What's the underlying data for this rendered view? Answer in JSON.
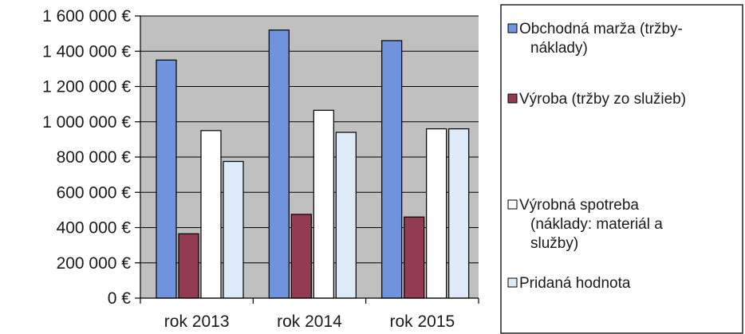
{
  "chart_data": {
    "type": "bar",
    "categories": [
      "rok 2013",
      "rok 2014",
      "rok 2015"
    ],
    "series": [
      {
        "name": "Obchodná marža (tržby-náklady)",
        "values": [
          1350000,
          1520000,
          1460000
        ],
        "color": "#6f93dd"
      },
      {
        "name": "Výroba (tržby zo služieb)",
        "values": [
          365000,
          475000,
          460000
        ],
        "color": "#933b52"
      },
      {
        "name": "Výrobná spotreba (náklady: materiál a služby)",
        "values": [
          950000,
          1065000,
          960000
        ],
        "color": "#ffffff"
      },
      {
        "name": "Pridaná hodnota",
        "values": [
          775000,
          940000,
          960000
        ],
        "color": "#ddeaf8"
      }
    ],
    "legend_lines": [
      [
        "Obchodná marža (tržby-",
        "náklady)"
      ],
      [
        "Výroba (tržby zo služieb)"
      ],
      [
        "Výrobná spotreba",
        "(náklady: materiál a",
        "služby)"
      ],
      [
        "Pridaná hodnota"
      ]
    ],
    "yticks": [
      "0 €",
      "200 000 €",
      "400 000 €",
      "600 000 €",
      "800 000 €",
      "1 000 000 €",
      "1 200 000 €",
      "1 400 000 €",
      "1 600 000 €"
    ],
    "ylim": [
      0,
      1600000
    ],
    "grid": true,
    "legend_position": "right",
    "plot_background": "#c0c0c0"
  }
}
